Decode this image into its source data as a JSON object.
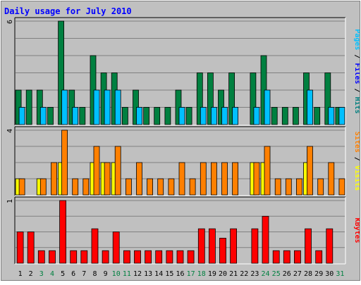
{
  "title": "Daily usage for July 2010",
  "colors": {
    "background": "#c0c0c0",
    "frame": "#e8e8e8",
    "title_text": "#0000ff",
    "hits": "#008040",
    "files": "#00c0ff",
    "sites": "#ffff00",
    "visits": "#ff8000",
    "kbytes": "#ff0000",
    "weekday_label": "#000000",
    "weekend_label": "#008040"
  },
  "chart_data": {
    "type": "bar",
    "title": "Daily usage for July 2010",
    "categories": [
      "1",
      "2",
      "3",
      "4",
      "5",
      "6",
      "7",
      "8",
      "9",
      "10",
      "11",
      "12",
      "13",
      "14",
      "15",
      "16",
      "17",
      "18",
      "19",
      "20",
      "21",
      "22",
      "23",
      "24",
      "25",
      "26",
      "27",
      "28",
      "29",
      "30",
      "31"
    ],
    "weekend_days": [
      "3",
      "4",
      "10",
      "11",
      "17",
      "18",
      "24",
      "25",
      "31"
    ],
    "panels": [
      {
        "id": "hits_files",
        "right_label": {
          "parts": [
            "Pages",
            " / ",
            "Files",
            " / ",
            "Hits"
          ],
          "colors": [
            "#00c0ff",
            "#000000",
            "#0000ff",
            "#000000",
            "#008080"
          ]
        },
        "ymax_label": "6",
        "ylim": [
          0,
          6
        ],
        "series": [
          {
            "name": "Hits",
            "color": "#008040",
            "values": [
              2,
              2,
              2,
              1,
              6,
              2,
              1,
              4,
              3,
              3,
              1,
              2,
              1,
              1,
              1,
              2,
              1,
              3,
              3,
              2,
              3,
              0,
              3,
              4,
              1,
              1,
              1,
              3,
              1,
              3,
              1
            ]
          },
          {
            "name": "Files",
            "color": "#00c0ff",
            "values": [
              1,
              0,
              1,
              0,
              2,
              1,
              0,
              2,
              2,
              2,
              0,
              1,
              0,
              0,
              0,
              1,
              0,
              1,
              1,
              1,
              1,
              0,
              1,
              2,
              0,
              0,
              0,
              2,
              0,
              1,
              1
            ]
          }
        ]
      },
      {
        "id": "sites_visits",
        "right_label": {
          "parts": [
            "Sites",
            " / ",
            "Visits"
          ],
          "colors": [
            "#ff8000",
            "#000000",
            "#ffff00"
          ]
        },
        "ymax_label": "4",
        "ylim": [
          0,
          4
        ],
        "series": [
          {
            "name": "Sites",
            "color": "#ffff00",
            "values": [
              1,
              0,
              1,
              0,
              2,
              0,
              0,
              2,
              2,
              2,
              0,
              0,
              0,
              0,
              0,
              0,
              0,
              0,
              0,
              0,
              0,
              0,
              2,
              2,
              0,
              0,
              0,
              2,
              0,
              0,
              0
            ]
          },
          {
            "name": "Visits",
            "color": "#ff8000",
            "values": [
              1,
              0,
              1,
              2,
              4,
              1,
              1,
              3,
              2,
              3,
              1,
              2,
              1,
              1,
              1,
              2,
              1,
              2,
              2,
              2,
              2,
              0,
              2,
              3,
              1,
              1,
              1,
              3,
              1,
              2,
              1
            ]
          }
        ]
      },
      {
        "id": "kbytes",
        "right_label": {
          "parts": [
            "KBytes"
          ],
          "colors": [
            "#ff0000"
          ]
        },
        "ymax_label": "1",
        "ylim": [
          0,
          1
        ],
        "series": [
          {
            "name": "KBytes",
            "color": "#ff0000",
            "values": [
              0.5,
              0.5,
              0.2,
              0.2,
              1.0,
              0.2,
              0.2,
              0.55,
              0.2,
              0.5,
              0.2,
              0.2,
              0.2,
              0.2,
              0.2,
              0.2,
              0.2,
              0.55,
              0.55,
              0.4,
              0.55,
              0.0,
              0.55,
              0.75,
              0.2,
              0.2,
              0.2,
              0.55,
              0.2,
              0.55,
              0.0
            ]
          }
        ]
      }
    ]
  }
}
